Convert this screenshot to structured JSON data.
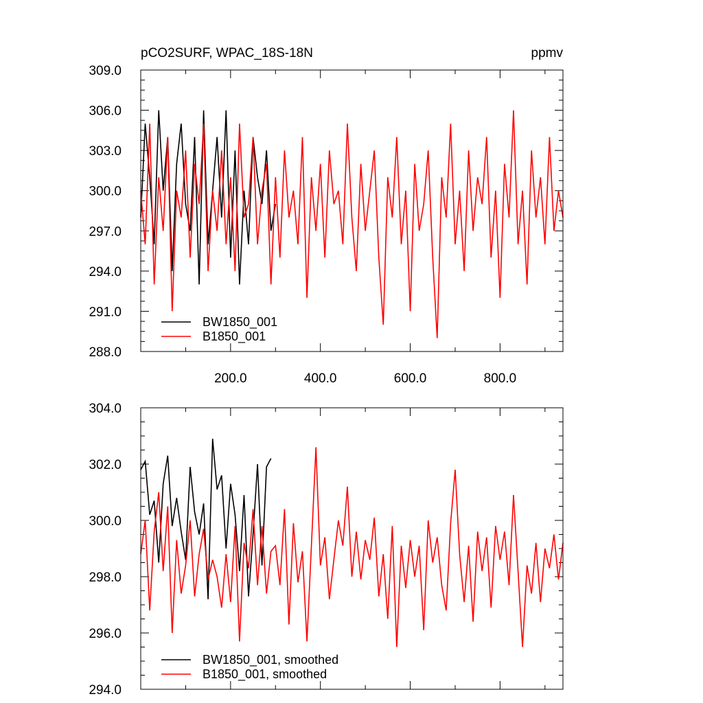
{
  "chart_data": [
    {
      "type": "line",
      "title": "pCO2SURF, WPAC_18S-18N",
      "units": "ppmv",
      "xlim": [
        0,
        940
      ],
      "ylim": [
        288,
        309
      ],
      "xticks": [
        200,
        400,
        600,
        800
      ],
      "xtick_labels": [
        "200.0",
        "400.0",
        "600.0",
        "800.0"
      ],
      "yticks": [
        288,
        291,
        294,
        297,
        300,
        303,
        306,
        309
      ],
      "ytick_labels": [
        "288.0",
        "291.0",
        "294.0",
        "297.0",
        "300.0",
        "303.0",
        "306.0",
        "309.0"
      ],
      "legend_position": "bottom-left",
      "series": [
        {
          "name": "BW1850_001",
          "color": "#000000",
          "x": [
            0,
            10,
            20,
            30,
            40,
            50,
            60,
            70,
            80,
            90,
            100,
            110,
            120,
            130,
            140,
            150,
            160,
            170,
            180,
            190,
            200,
            210,
            220,
            230,
            240,
            250,
            260,
            270,
            280,
            290,
            300
          ],
          "values": [
            298,
            305,
            301,
            296,
            306,
            300,
            304,
            294,
            302,
            305,
            299,
            297,
            304,
            293,
            306,
            296,
            300,
            304,
            298,
            306,
            295,
            303,
            293,
            300,
            296,
            304,
            301,
            299,
            303,
            297,
            299
          ]
        },
        {
          "name": "B1850_001",
          "color": "#ff0000",
          "x": [
            0,
            10,
            20,
            30,
            40,
            50,
            60,
            70,
            80,
            90,
            100,
            110,
            120,
            130,
            140,
            150,
            160,
            170,
            180,
            190,
            200,
            210,
            220,
            230,
            240,
            250,
            260,
            270,
            280,
            290,
            300,
            310,
            320,
            330,
            340,
            350,
            360,
            370,
            380,
            390,
            400,
            410,
            420,
            430,
            440,
            450,
            460,
            470,
            480,
            490,
            500,
            510,
            520,
            530,
            540,
            550,
            560,
            570,
            580,
            590,
            600,
            610,
            620,
            630,
            640,
            650,
            660,
            670,
            680,
            690,
            700,
            710,
            720,
            730,
            740,
            750,
            760,
            770,
            780,
            790,
            800,
            810,
            820,
            830,
            840,
            850,
            860,
            870,
            880,
            890,
            900,
            910,
            920,
            930,
            940
          ],
          "values": [
            300,
            296,
            305,
            293,
            301,
            297,
            304,
            291,
            300,
            298,
            303,
            295,
            302,
            299,
            305,
            294,
            300,
            297,
            303,
            296,
            301,
            294,
            305,
            298,
            299,
            304,
            296,
            300,
            302,
            293,
            301,
            295,
            303,
            298,
            300,
            296,
            304,
            292,
            301,
            297,
            302,
            295,
            303,
            299,
            300,
            296,
            305,
            298,
            294,
            302,
            297,
            300,
            303,
            295,
            290,
            301,
            298,
            304,
            296,
            300,
            291,
            302,
            297,
            299,
            303,
            295,
            289,
            301,
            298,
            305,
            296,
            300,
            294,
            303,
            297,
            301,
            299,
            304,
            295,
            300,
            292,
            302,
            298,
            306,
            296,
            300,
            293,
            303,
            298,
            301,
            296,
            304,
            297,
            300,
            298
          ]
        }
      ]
    },
    {
      "type": "line",
      "title": "",
      "xlim": [
        0,
        940
      ],
      "ylim": [
        294,
        304
      ],
      "xticks": [
        200,
        400,
        600,
        800
      ],
      "yticks": [
        294,
        296,
        298,
        300,
        302,
        304
      ],
      "ytick_labels": [
        "294.0",
        "296.0",
        "298.0",
        "300.0",
        "302.0",
        "304.0"
      ],
      "legend_position": "bottom-left",
      "series": [
        {
          "name": "BW1850_001, smoothed",
          "color": "#000000",
          "x": [
            0,
            10,
            20,
            30,
            40,
            50,
            60,
            70,
            80,
            90,
            100,
            110,
            120,
            130,
            140,
            150,
            160,
            170,
            180,
            190,
            200,
            210,
            220,
            230,
            240,
            250,
            260,
            270,
            280,
            290
          ],
          "values": [
            301.8,
            302.1,
            300.2,
            300.7,
            298.5,
            301.3,
            302.3,
            299.8,
            300.8,
            299.6,
            298.6,
            301.9,
            300.3,
            299.5,
            300.6,
            297.2,
            302.9,
            301.1,
            301.6,
            299.0,
            301.3,
            300.2,
            298.2,
            300.9,
            297.3,
            299.5,
            302.0,
            298.4,
            301.9,
            302.2
          ]
        },
        {
          "name": "B1850_001, smoothed",
          "color": "#ff0000",
          "x": [
            0,
            10,
            20,
            30,
            40,
            50,
            60,
            70,
            80,
            90,
            100,
            110,
            120,
            130,
            140,
            150,
            160,
            170,
            180,
            190,
            200,
            210,
            220,
            230,
            240,
            250,
            260,
            270,
            280,
            290,
            300,
            310,
            320,
            330,
            340,
            350,
            360,
            370,
            380,
            390,
            400,
            410,
            420,
            430,
            440,
            450,
            460,
            470,
            480,
            490,
            500,
            510,
            520,
            530,
            540,
            550,
            560,
            570,
            580,
            590,
            600,
            610,
            620,
            630,
            640,
            650,
            660,
            670,
            680,
            690,
            700,
            710,
            720,
            730,
            740,
            750,
            760,
            770,
            780,
            790,
            800,
            810,
            820,
            830,
            840,
            850,
            860,
            870,
            880,
            890,
            900,
            910,
            920,
            930,
            940
          ],
          "values": [
            298.8,
            300.0,
            296.8,
            299.6,
            301.0,
            298.2,
            300.5,
            296.0,
            299.3,
            297.4,
            298.4,
            300.0,
            297.3,
            298.8,
            299.7,
            297.9,
            298.6,
            298.0,
            296.9,
            298.8,
            297.1,
            299.8,
            295.7,
            299.2,
            298.3,
            300.4,
            297.7,
            299.8,
            297.4,
            298.9,
            299.1,
            297.7,
            300.4,
            296.3,
            299.9,
            297.8,
            298.9,
            295.7,
            299.1,
            302.6,
            298.4,
            299.4,
            297.2,
            298.6,
            300.0,
            299.1,
            301.2,
            298.0,
            299.6,
            297.9,
            299.3,
            298.6,
            300.1,
            297.3,
            298.8,
            296.5,
            299.8,
            295.5,
            299.1,
            297.6,
            299.3,
            298.0,
            299.1,
            296.1,
            300.0,
            298.5,
            299.4,
            297.7,
            296.8,
            299.9,
            301.8,
            298.8,
            297.1,
            299.1,
            296.4,
            299.6,
            298.2,
            299.4,
            296.9,
            299.8,
            298.6,
            299.6,
            297.7,
            300.9,
            298.2,
            295.5,
            298.4,
            297.4,
            299.2,
            297.1,
            299.0,
            298.3,
            299.5,
            297.9,
            299.2
          ]
        }
      ]
    }
  ]
}
